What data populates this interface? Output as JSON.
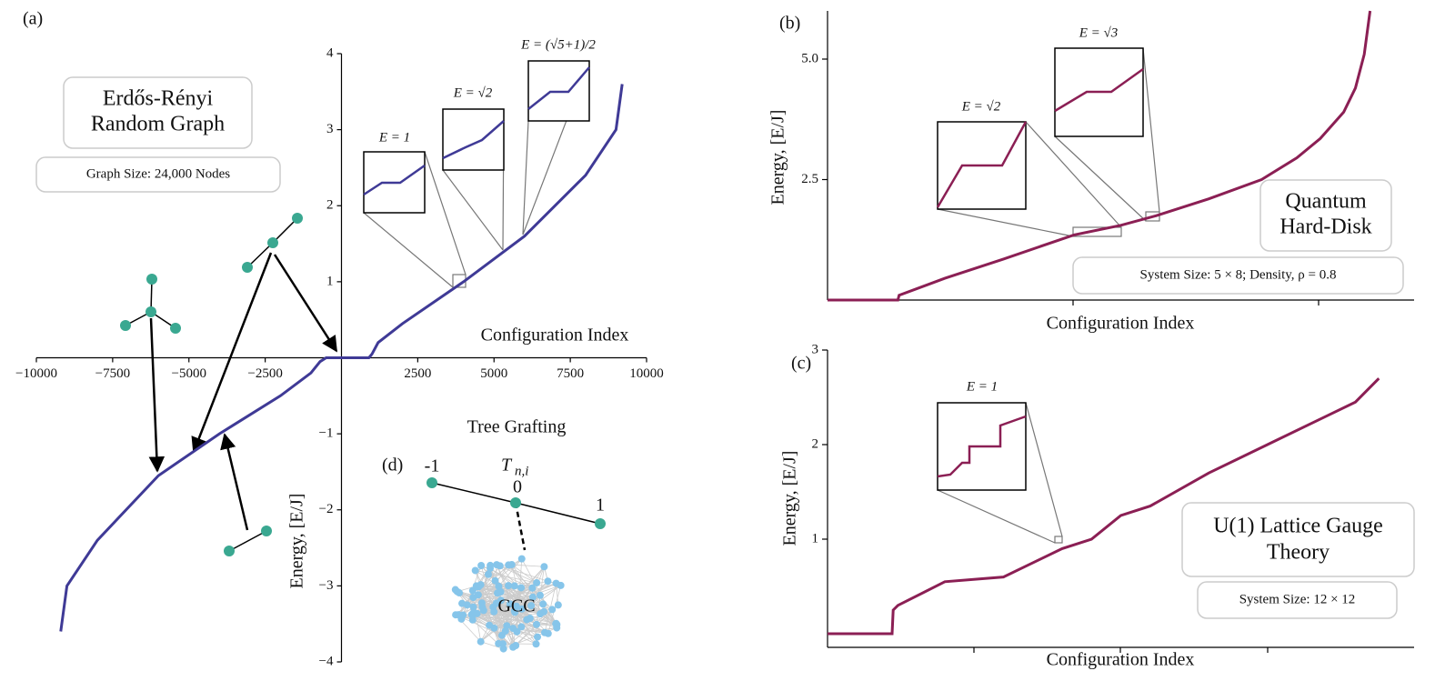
{
  "chart_data": [
    {
      "type": "line",
      "panel": "(a)",
      "title": [
        "Erdős-Rényi",
        "Random Graph"
      ],
      "info": "Graph Size: 24,000 Nodes",
      "xlabel": "Configuration Index",
      "ylabel": "Energy, [E/J]",
      "insets": [
        "E = 1",
        "E = √2",
        "E = (√5+1)/2"
      ],
      "x": [
        -9200,
        -9000,
        -8000,
        -6000,
        -4000,
        -2000,
        -1000,
        -700,
        -500,
        900,
        1000,
        1200,
        2000,
        4000,
        6000,
        8000,
        9000,
        9200
      ],
      "series": [
        {
          "color": "#3f3a96",
          "values": [
            -3.6,
            -3.0,
            -2.4,
            -1.55,
            -1.0,
            -0.5,
            -0.2,
            -0.05,
            0,
            0,
            0.05,
            0.2,
            0.45,
            1.0,
            1.6,
            2.4,
            3.0,
            3.6
          ]
        }
      ],
      "xlim": [
        -10000,
        10000
      ],
      "ylim": [
        -4,
        4
      ],
      "xticks": [
        {
          "value": -10000,
          "label": "−10000"
        },
        {
          "value": -7500,
          "label": "−7500"
        },
        {
          "value": -5000,
          "label": "−5000"
        },
        {
          "value": -2500,
          "label": "−2500"
        },
        2500,
        5000,
        7500,
        10000
      ],
      "yticks": [
        {
          "value": -4,
          "label": "−4"
        },
        {
          "value": -3,
          "label": "−3"
        },
        {
          "value": -2,
          "label": "−2"
        },
        {
          "value": -1,
          "label": "−1"
        },
        1,
        2,
        3,
        4
      ]
    },
    {
      "type": "line",
      "panel": "(b)",
      "title": [
        "Quantum",
        "Hard-Disk"
      ],
      "info": "System Size: 5 × 8; Density, ρ = 0.8",
      "xlabel": "Configuration Index",
      "ylabel": "Energy, [E/J]",
      "insets": [
        "E = √2",
        "E = √3"
      ],
      "x": [
        0,
        0.12,
        0.122,
        0.2,
        0.3,
        0.42,
        0.5,
        0.56,
        0.65,
        0.74,
        0.8,
        0.84,
        0.88,
        0.9,
        0.915,
        0.925
      ],
      "series": [
        {
          "color": "#8b1f54",
          "values": [
            0,
            0,
            0.1,
            0.45,
            0.85,
            1.35,
            1.55,
            1.75,
            2.1,
            2.5,
            2.95,
            3.35,
            3.9,
            4.4,
            5.1,
            6.0
          ]
        }
      ],
      "xlim": [
        0,
        1
      ],
      "ylim": [
        0,
        6
      ],
      "yticks": [
        {
          "value": 2.5,
          "label": "2.5"
        },
        {
          "value": 5,
          "label": "5.0"
        }
      ]
    },
    {
      "type": "line",
      "panel": "(c)",
      "title": [
        "U(1) Lattice Gauge",
        "Theory"
      ],
      "info": "System Size: 12 × 12",
      "xlabel": "Configuration Index",
      "ylabel": "Energy, [E/J]",
      "insets": [
        "E = 1"
      ],
      "x": [
        0,
        0.11,
        0.112,
        0.12,
        0.2,
        0.3,
        0.4,
        0.45,
        0.5,
        0.55,
        0.65,
        0.75,
        0.85,
        0.9,
        0.94
      ],
      "series": [
        {
          "color": "#8b1f54",
          "values": [
            0,
            0,
            0.25,
            0.3,
            0.55,
            0.6,
            0.9,
            1.0,
            1.25,
            1.35,
            1.7,
            2.0,
            2.3,
            2.45,
            2.7
          ]
        }
      ],
      "xlim": [
        0,
        1
      ],
      "ylim": [
        -0.125,
        3
      ],
      "yticks": [
        1,
        2,
        3
      ]
    }
  ],
  "diagram": {
    "panel": "(d)",
    "title": "Tree Grafting",
    "symbol": "T",
    "subscript": "n,i",
    "nodes": [
      "-1",
      "0",
      "1"
    ],
    "cluster": "GCC"
  }
}
